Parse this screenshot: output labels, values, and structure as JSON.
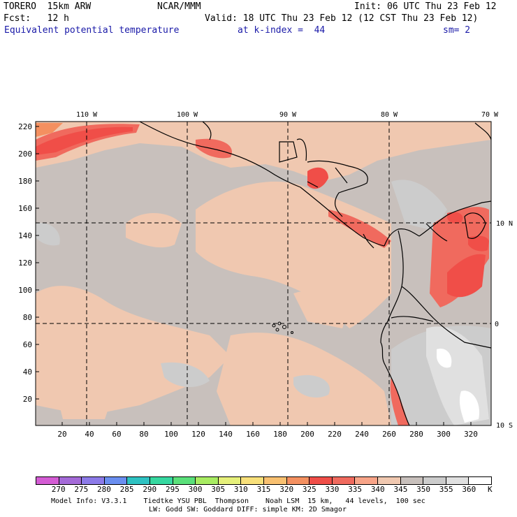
{
  "header": {
    "model": "TORERO  15km ARW",
    "center": "NCAR/MMM",
    "init": "Init: 06 UTC Thu 23 Feb 12",
    "fcst": "Fcst:   12 h",
    "valid": "Valid: 18 UTC Thu 23 Feb 12 (12 CST Thu 23 Feb 12)",
    "field": "Equivalent potential temperature",
    "level": "at k-index =  44",
    "smooth": "sm= 2"
  },
  "map": {
    "top_lon_labels": [
      "110 W",
      "100 W",
      "90 W",
      "80 W",
      "70 W"
    ],
    "right_lat_labels": [
      "10 N",
      "0",
      "10 S"
    ],
    "y_axis_labels": [
      "220",
      "200",
      "180",
      "160",
      "140",
      "120",
      "100",
      "80",
      "60",
      "40",
      "20"
    ],
    "x_axis_labels": [
      "20",
      "40",
      "60",
      "80",
      "100",
      "120",
      "140",
      "160",
      "180",
      "200",
      "220",
      "240",
      "260",
      "280",
      "300",
      "320"
    ]
  },
  "colorbar": {
    "unit": "K",
    "labels": [
      "270",
      "275",
      "280",
      "285",
      "290",
      "295",
      "300",
      "305",
      "310",
      "315",
      "320",
      "325",
      "330",
      "335",
      "340",
      "345",
      "350",
      "355",
      "360"
    ],
    "colors": [
      "#d45cd4",
      "#a46ad8",
      "#8c7ae8",
      "#6a8ef0",
      "#2ec2c2",
      "#36d8a0",
      "#5ae07a",
      "#a8ec62",
      "#e6f07a",
      "#f8e07a",
      "#f8c070",
      "#f49060",
      "#f04e48",
      "#f06a5e",
      "#f8a488",
      "#f0c8b0",
      "#c8c0bc",
      "#cccccc",
      "#e0e0e0",
      "#ffffff"
    ]
  },
  "footer": {
    "line1": "Model Info: V3.3.1    Tiedtke YSU PBL  Thompson    Noah LSM  15 km,   44 levels,  100 sec",
    "line2": "LW: Godd SW: Goddard DIFF: simple KM: 2D Smagor"
  }
}
